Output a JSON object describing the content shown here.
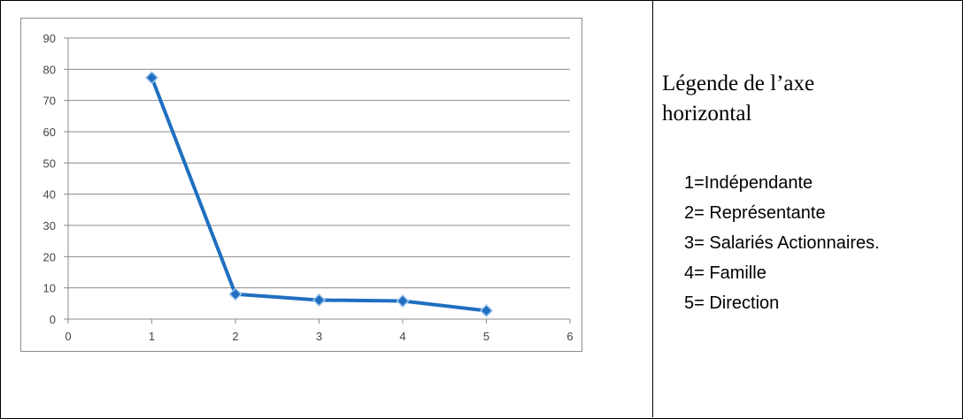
{
  "chart_data": {
    "type": "line",
    "x": [
      1,
      2,
      3,
      4,
      5
    ],
    "series": [
      {
        "values": [
          77.3,
          8.0,
          6.1,
          5.8,
          2.7
        ],
        "color": "#1f6fc0",
        "marker": "diamond"
      }
    ],
    "title": "",
    "xlabel": "",
    "ylabel": "",
    "xlim": [
      0,
      6
    ],
    "ylim": [
      0,
      90
    ],
    "xticks": [
      0,
      1,
      2,
      3,
      4,
      5,
      6
    ],
    "yticks": [
      0,
      10,
      20,
      30,
      40,
      50,
      60,
      70,
      80,
      90
    ],
    "grid": "horizontal",
    "legend": "none"
  },
  "legend_panel": {
    "title": "Légende de l’axe\nhorizontal",
    "items": [
      "1=Indépendante",
      "2= Représentante",
      "3= Salariés Actionnaires.",
      "4= Famille",
      "5= Direction"
    ]
  }
}
